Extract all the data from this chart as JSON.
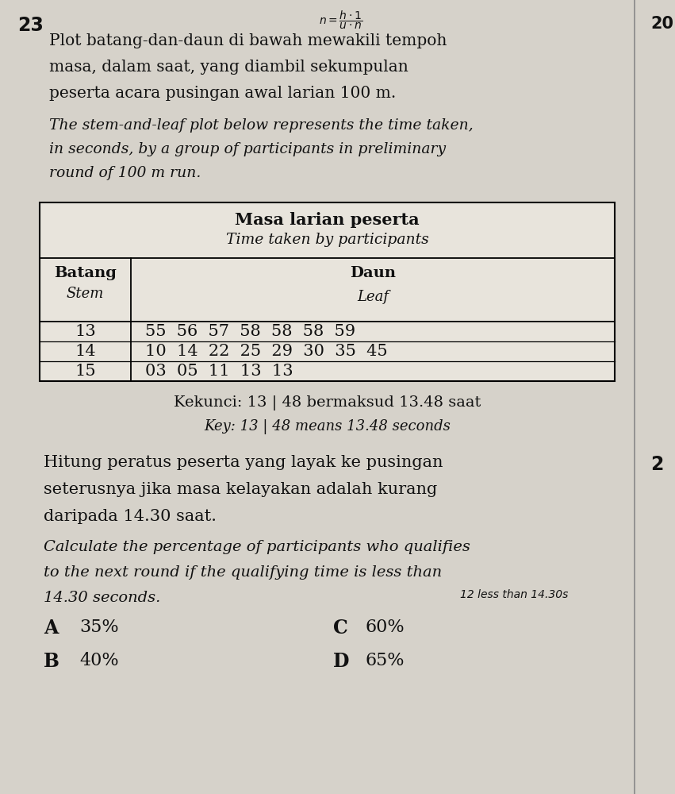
{
  "question_number": "23",
  "bg_color": "#d6d2ca",
  "text_color": "#111111",
  "question_text_malay_line1": "Plot batang-dan-daun di bawah mewakili tempoh",
  "question_text_malay_line2": "masa, dalam saat, yang diambil sekumpulan",
  "question_text_malay_line3": "peserta acara pusingan awal larian 100 m.",
  "question_text_english_line1": "The stem-and-leaf plot below represents the time taken,",
  "question_text_english_line2": "in seconds, by a group of participants in preliminary",
  "question_text_english_line3": "round of 100 m run.",
  "table_title_malay": "Masa larian peserta",
  "table_title_english": "Time taken by participants",
  "col_header_stem_malay": "Batang",
  "col_header_stem_english": "Stem",
  "col_header_leaf_malay": "Daun",
  "col_header_leaf_english": "Leaf",
  "stem_data": [
    "13",
    "14",
    "15"
  ],
  "leaf_data": [
    "55  56  57  58  58  58  59",
    "10  14  22  25  29  30  35  45",
    "03  05  11  13  13"
  ],
  "key_text_malay": "Kekunci: 13 | 48 bermaksud 13.48 saat",
  "key_text_english": "Key: 13 | 48 means 13.48 seconds",
  "body_malay_line1": "Hitung peratus peserta yang layak ke pusingan",
  "body_malay_line2": "seterusnya jika masa kelayakan adalah kurang",
  "body_malay_line3": "daripada 14.30 saat.",
  "body_english_line1": "Calculate the percentage of participants who qualifies",
  "body_english_line2": "to the next round if the qualifying time is less than",
  "body_english_line3": "14.30 seconds.",
  "handwritten_note": "12 less than 14.30s",
  "options": [
    {
      "label": "A",
      "value": "35%"
    },
    {
      "label": "B",
      "value": "40%"
    },
    {
      "label": "C",
      "value": "60%"
    },
    {
      "label": "D",
      "value": "65%"
    }
  ],
  "page_number_top_right": "20",
  "right_col_number": "2"
}
